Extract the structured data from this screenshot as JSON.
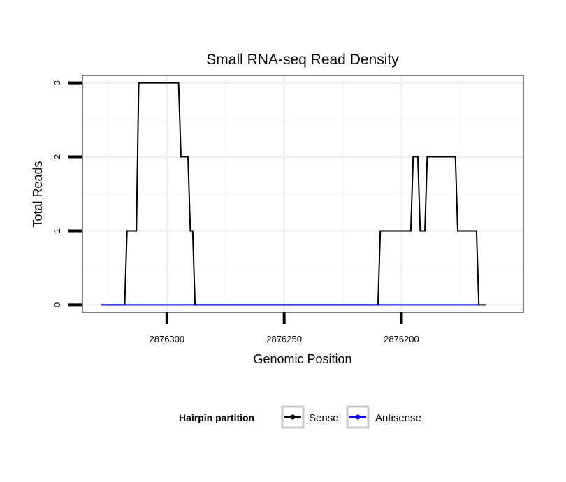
{
  "chart_data": {
    "type": "line",
    "title": "Small RNA-seq Read Density",
    "xlabel": "Genomic Position",
    "ylabel": "Total Reads",
    "x_reversed": true,
    "xlim": [
      2876336,
      2876148
    ],
    "ylim": [
      -0.1,
      3.1
    ],
    "x_ticks": [
      2876300,
      2876250,
      2876200
    ],
    "x_tick_labels": [
      "2876300",
      "2876250",
      "2876200"
    ],
    "y_ticks": [
      0,
      1,
      2,
      3
    ],
    "y_tick_labels": [
      "0",
      "1",
      "2",
      "3"
    ],
    "grid": true,
    "legend": {
      "title": "Hairpin partition",
      "position": "bottom",
      "entries": [
        {
          "label": "Sense",
          "color": "#000000"
        },
        {
          "label": "Antisense",
          "color": "#0000ff"
        }
      ]
    },
    "series": [
      {
        "name": "Sense",
        "color": "#000000",
        "x": [
          2876328,
          2876318,
          2876317,
          2876313,
          2876312,
          2876295,
          2876294,
          2876291,
          2876290,
          2876289,
          2876288,
          2876210,
          2876209,
          2876196,
          2876195,
          2876193,
          2876192,
          2876190,
          2876189,
          2876177,
          2876176,
          2876168,
          2876167,
          2876164
        ],
        "y": [
          0,
          0,
          1,
          1,
          3,
          3,
          2,
          2,
          1,
          1,
          0,
          0,
          1,
          1,
          2,
          2,
          1,
          1,
          2,
          2,
          1,
          1,
          0,
          0
        ]
      },
      {
        "name": "Antisense",
        "color": "#0000ff",
        "x": [
          2876328,
          2876167
        ],
        "y": [
          0,
          0
        ]
      }
    ]
  }
}
